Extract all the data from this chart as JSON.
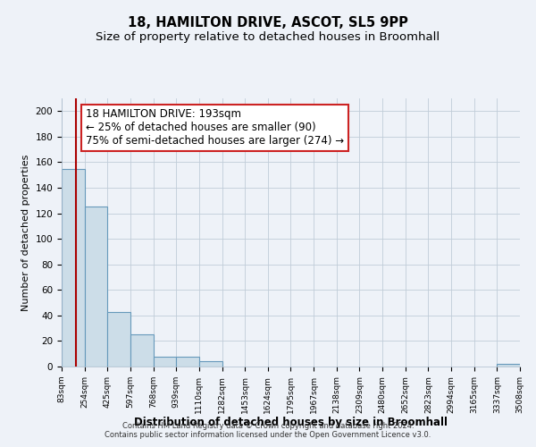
{
  "title": "18, HAMILTON DRIVE, ASCOT, SL5 9PP",
  "subtitle": "Size of property relative to detached houses in Broomhall",
  "xlabel": "Distribution of detached houses by size in Broomhall",
  "ylabel": "Number of detached properties",
  "bin_edges": [
    83,
    254,
    425,
    597,
    768,
    939,
    1110,
    1282,
    1453,
    1624,
    1795,
    1967,
    2138,
    2309,
    2480,
    2652,
    2823,
    2994,
    3165,
    3337,
    3508
  ],
  "bar_heights": [
    155,
    125,
    43,
    25,
    8,
    8,
    4,
    0,
    0,
    0,
    0,
    0,
    0,
    0,
    0,
    0,
    0,
    0,
    0,
    2
  ],
  "bar_color": "#ccdde8",
  "bar_edge_color": "#6699bb",
  "property_size": 193,
  "vline_color": "#aa0000",
  "annotation_line1": "18 HAMILTON DRIVE: 193sqm",
  "annotation_line2": "← 25% of detached houses are smaller (90)",
  "annotation_line3": "75% of semi-detached houses are larger (274) →",
  "annotation_box_edge": "#cc2222",
  "annotation_box_face": "#ffffff",
  "ylim": [
    0,
    210
  ],
  "yticks": [
    0,
    20,
    40,
    60,
    80,
    100,
    120,
    140,
    160,
    180,
    200
  ],
  "tick_labels": [
    "83sqm",
    "254sqm",
    "425sqm",
    "597sqm",
    "768sqm",
    "939sqm",
    "1110sqm",
    "1282sqm",
    "1453sqm",
    "1624sqm",
    "1795sqm",
    "1967sqm",
    "2138sqm",
    "2309sqm",
    "2480sqm",
    "2652sqm",
    "2823sqm",
    "2994sqm",
    "3165sqm",
    "3337sqm",
    "3508sqm"
  ],
  "footer1": "Contains HM Land Registry data © Crown copyright and database right 2024.",
  "footer2": "Contains public sector information licensed under the Open Government Licence v3.0.",
  "background_color": "#eef2f8",
  "grid_color": "#c0ccd8",
  "title_fontsize": 10.5,
  "subtitle_fontsize": 9.5,
  "ylabel_fontsize": 8,
  "xlabel_fontsize": 8.5,
  "tick_fontsize": 6.5,
  "annotation_fontsize": 8.5,
  "footer_fontsize": 6
}
